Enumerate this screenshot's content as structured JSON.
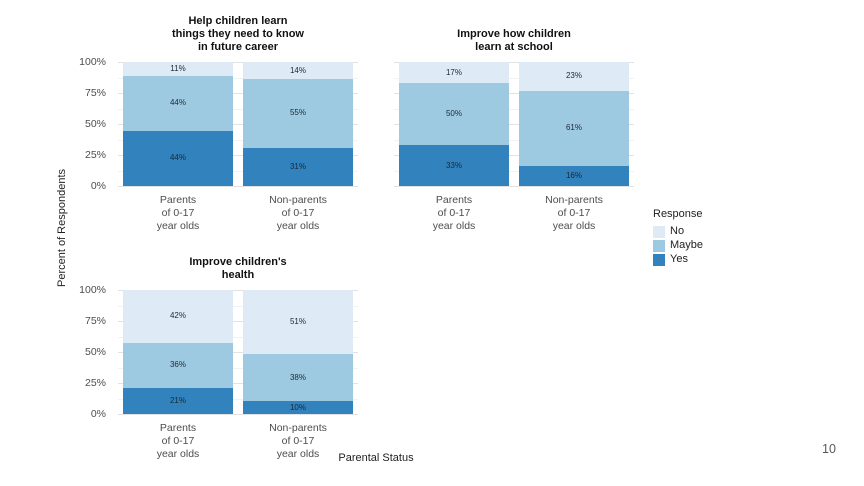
{
  "page": {
    "number": "10"
  },
  "chart_data": {
    "type": "bar",
    "subtype": "100%-stacked, faceted",
    "ylabel": "Percent of Respondents",
    "xlabel": "Parental Status",
    "ylim": [
      0,
      100
    ],
    "y_ticks": [
      "100%",
      "75%",
      "50%",
      "25%",
      "0%"
    ],
    "grid": "horizontal major + minor, light gray on white",
    "value_suffix": "%",
    "legend": {
      "title": "Response",
      "position": "right",
      "entries": [
        {
          "label": "No",
          "color": "#DEEBF7"
        },
        {
          "label": "Maybe",
          "color": "#9ECAE1"
        },
        {
          "label": "Yes",
          "color": "#3182BD"
        }
      ]
    },
    "stack_order_bottom_to_top": [
      "Yes",
      "Maybe",
      "No"
    ],
    "categories": [
      [
        "Parents",
        "of 0-17",
        "year olds"
      ],
      [
        "Non-parents",
        "of 0-17",
        "year olds"
      ]
    ],
    "facets": [
      {
        "title_lines": [
          "Help children learn",
          "things they need to know",
          "in future career"
        ],
        "show_y_axis": true,
        "bars": [
          {
            "category": "Parents of 0-17 year olds",
            "values": {
              "Yes": 44,
              "Maybe": 44,
              "No": 11
            }
          },
          {
            "category": "Non-parents of 0-17 year olds",
            "values": {
              "Yes": 31,
              "Maybe": 55,
              "No": 14
            }
          }
        ]
      },
      {
        "title_lines": [
          "Improve how children",
          "learn at school"
        ],
        "show_y_axis": false,
        "bars": [
          {
            "category": "Parents of 0-17 year olds",
            "values": {
              "Yes": 33,
              "Maybe": 50,
              "No": 17
            }
          },
          {
            "category": "Non-parents of 0-17 year olds",
            "values": {
              "Yes": 16,
              "Maybe": 61,
              "No": 23
            }
          }
        ]
      },
      {
        "title_lines": [
          "Improve children's",
          "health"
        ],
        "show_y_axis": true,
        "bars": [
          {
            "category": "Parents of 0-17 year olds",
            "values": {
              "Yes": 21,
              "Maybe": 36,
              "No": 42
            }
          },
          {
            "category": "Non-parents of 0-17 year olds",
            "values": {
              "Yes": 10,
              "Maybe": 38,
              "No": 51
            }
          }
        ]
      }
    ]
  }
}
